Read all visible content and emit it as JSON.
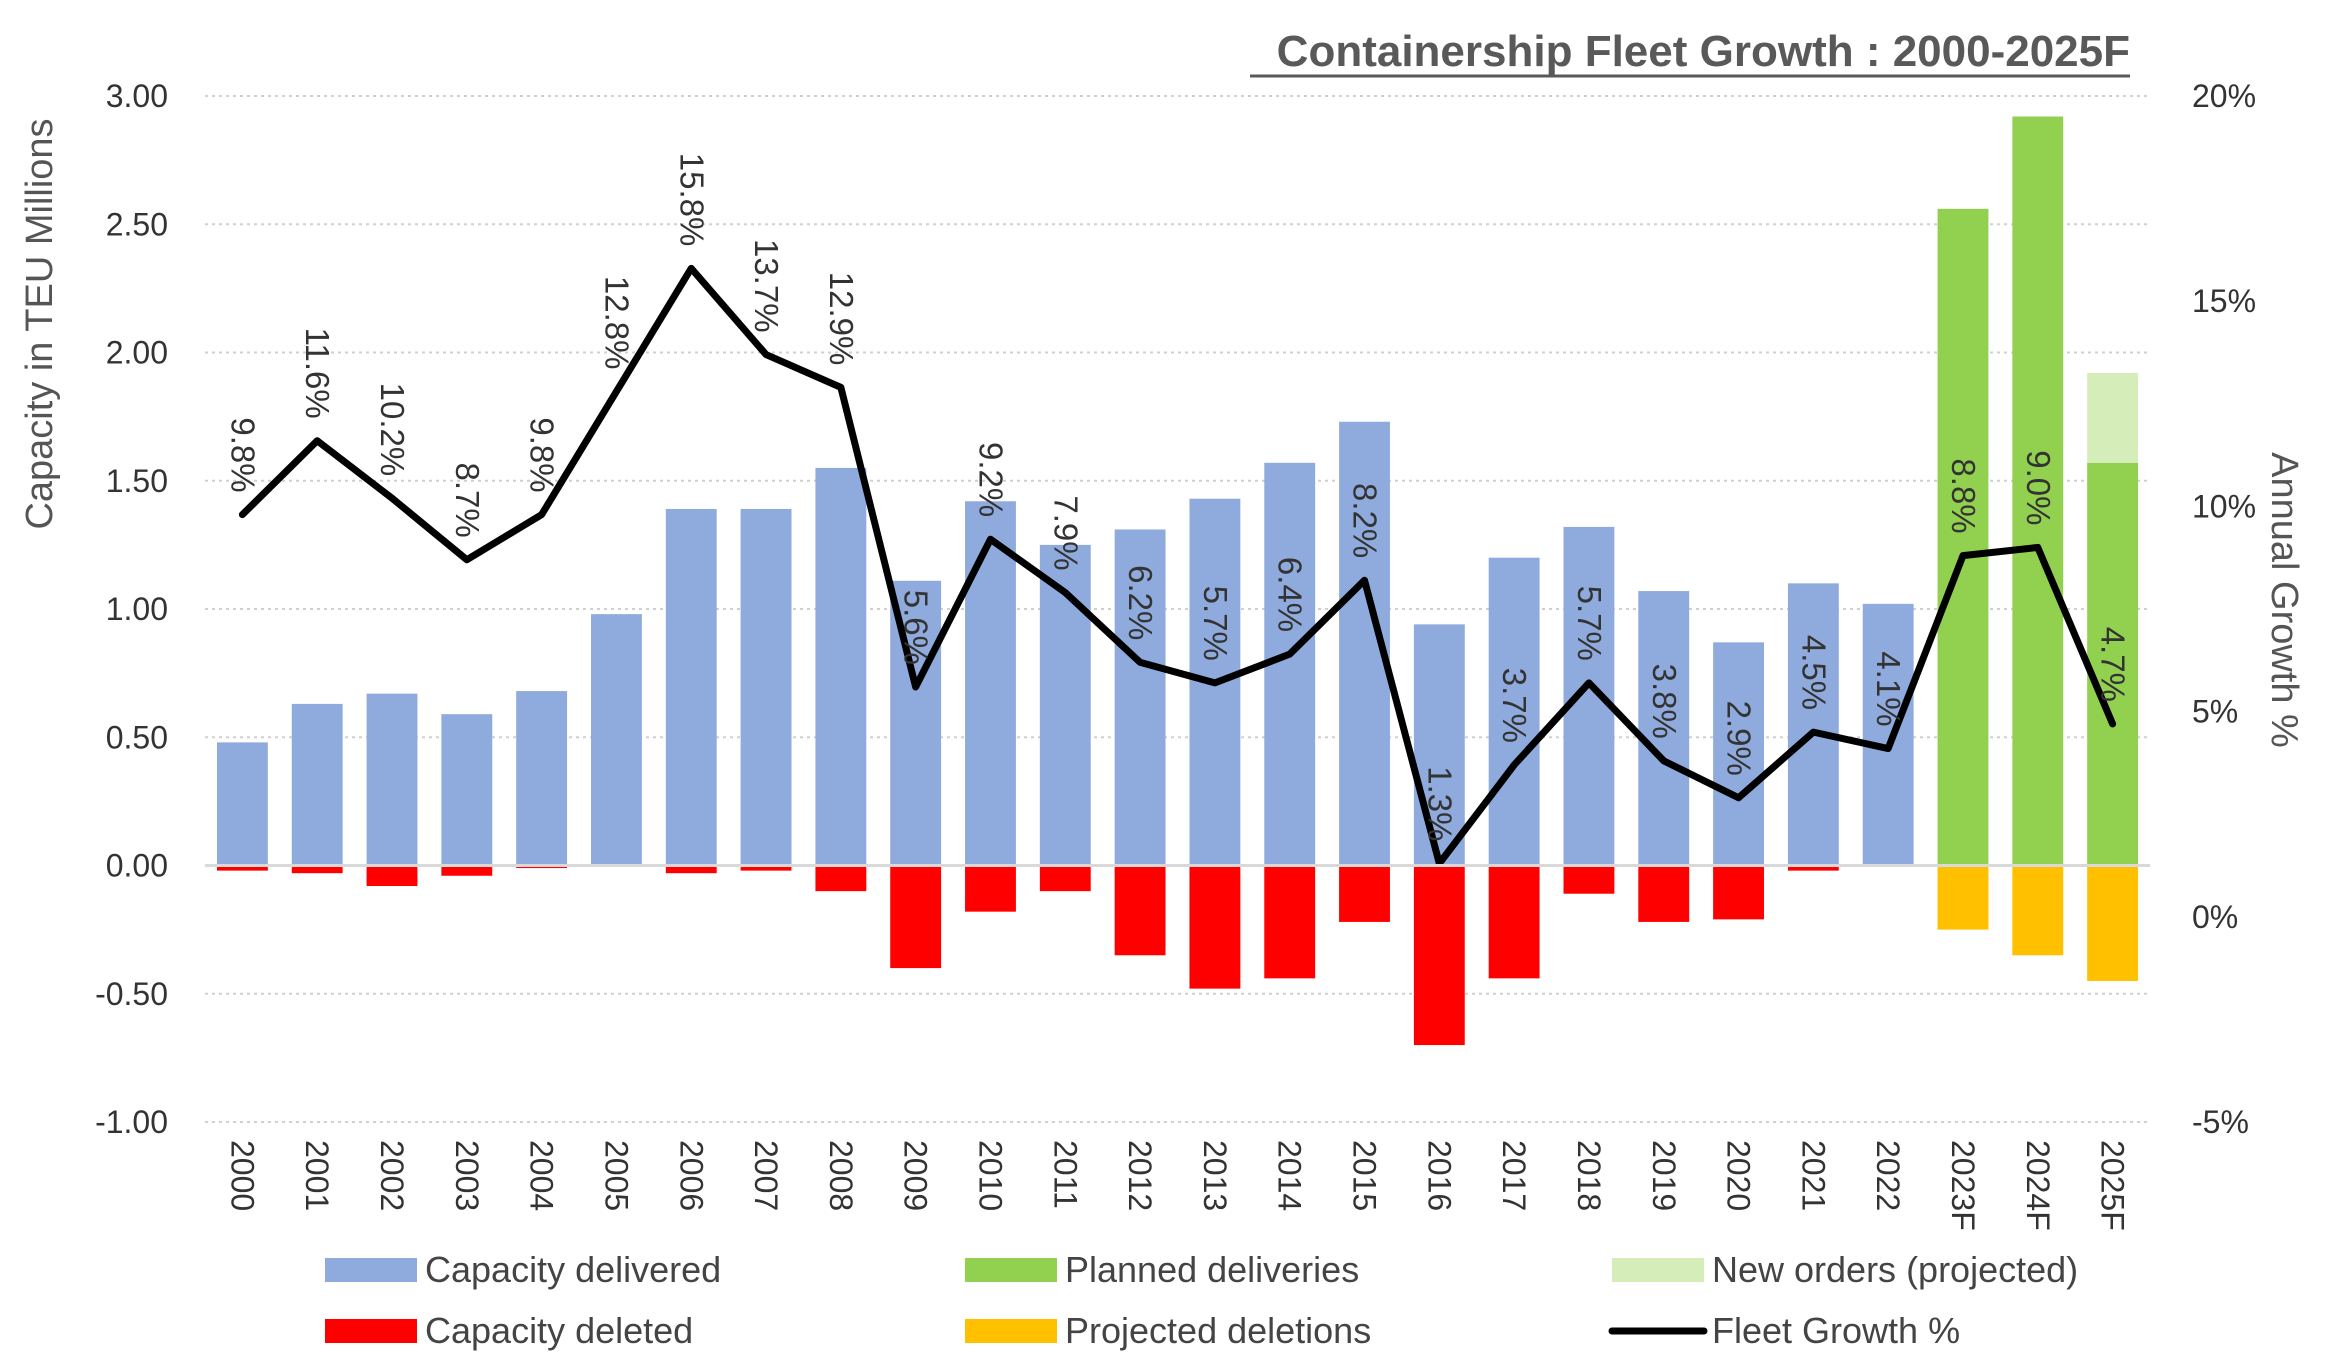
{
  "chart_data": {
    "type": "bar",
    "title": "Containership Fleet Growth : 2000-2025F",
    "ylabel": "Capacity in TEU Millions",
    "ylabel_right": "Annual Growth %",
    "ylim": [
      -1.0,
      3.0
    ],
    "ylim_right": [
      -5,
      20
    ],
    "y_ticks": [
      "3.00",
      "2.50",
      "2.00",
      "1.50",
      "1.00",
      "0.50",
      "0.00",
      "-0.50",
      "-1.00"
    ],
    "y_ticks_right": [
      "20%",
      "15%",
      "10%",
      "5%",
      "0%",
      "-5%"
    ],
    "grid": true,
    "legend_position": "bottom",
    "categories": [
      "2000",
      "2001",
      "2002",
      "2003",
      "2004",
      "2005",
      "2006",
      "2007",
      "2008",
      "2009",
      "2010",
      "2011",
      "2012",
      "2013",
      "2014",
      "2015",
      "2016",
      "2017",
      "2018",
      "2019",
      "2020",
      "2021",
      "2022",
      "2023F",
      "2024F",
      "2025F"
    ],
    "series": [
      {
        "name": "Capacity delivered",
        "kind": "bar",
        "color": "#8FAADC",
        "values": [
          0.48,
          0.63,
          0.67,
          0.59,
          0.68,
          0.98,
          1.39,
          1.39,
          1.55,
          1.11,
          1.42,
          1.25,
          1.31,
          1.43,
          1.57,
          1.73,
          0.94,
          1.2,
          1.32,
          1.07,
          0.87,
          1.1,
          1.02,
          null,
          null,
          null
        ]
      },
      {
        "name": "Planned deliveries",
        "kind": "bar",
        "color": "#92D050",
        "values": [
          null,
          null,
          null,
          null,
          null,
          null,
          null,
          null,
          null,
          null,
          null,
          null,
          null,
          null,
          null,
          null,
          null,
          null,
          null,
          null,
          null,
          null,
          null,
          2.56,
          2.92,
          1.57
        ]
      },
      {
        "name": "New orders (projected)",
        "kind": "bar",
        "color": "#D5EDB9",
        "values": [
          null,
          null,
          null,
          null,
          null,
          null,
          null,
          null,
          null,
          null,
          null,
          null,
          null,
          null,
          null,
          null,
          null,
          null,
          null,
          null,
          null,
          null,
          null,
          0,
          0,
          0.35
        ]
      },
      {
        "name": "Capacity deleted",
        "kind": "bar",
        "color": "#FF0000",
        "values": [
          -0.02,
          -0.03,
          -0.08,
          -0.04,
          -0.01,
          0,
          -0.03,
          -0.02,
          -0.1,
          -0.4,
          -0.18,
          -0.1,
          -0.35,
          -0.48,
          -0.44,
          -0.22,
          -0.7,
          -0.44,
          -0.11,
          -0.22,
          -0.21,
          -0.02,
          0,
          null,
          null,
          null
        ]
      },
      {
        "name": "Projected deletions",
        "kind": "bar",
        "color": "#FFC000",
        "values": [
          null,
          null,
          null,
          null,
          null,
          null,
          null,
          null,
          null,
          null,
          null,
          null,
          null,
          null,
          null,
          null,
          null,
          null,
          null,
          null,
          null,
          null,
          null,
          -0.25,
          -0.35,
          -0.45
        ]
      },
      {
        "name": "Fleet Growth %",
        "kind": "line",
        "axis": "right",
        "color": "#000000",
        "values": [
          9.8,
          11.6,
          10.2,
          8.7,
          9.8,
          12.8,
          15.8,
          13.7,
          12.9,
          5.6,
          9.2,
          7.9,
          6.2,
          5.7,
          6.4,
          8.2,
          1.3,
          3.7,
          5.7,
          3.8,
          2.9,
          4.5,
          4.1,
          8.8,
          9.0,
          4.7
        ],
        "labels": [
          "9.8%",
          "11.6%",
          "10.2%",
          "8.7%",
          "9.8%",
          "12.8%",
          "15.8%",
          "13.7%",
          "12.9%",
          "5.6%",
          "9.2%",
          "7.9%",
          "6.2%",
          "5.7%",
          "6.4%",
          "8.2%",
          "1.3%",
          "3.7%",
          "5.7%",
          "3.8%",
          "2.9%",
          "4.5%",
          "4.1%",
          "8.8%",
          "9.0%",
          "4.7%"
        ]
      }
    ]
  }
}
